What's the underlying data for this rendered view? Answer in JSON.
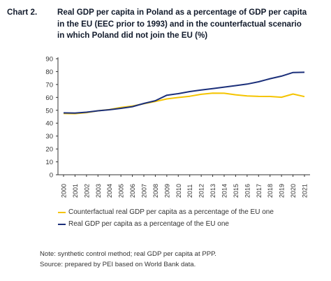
{
  "chart_data": {
    "type": "line",
    "label": "Chart 2.",
    "title": "Real GDP per capita in Poland as a percentage of GDP per capita in the EU (EEC prior to 1993) and in the counterfactual scenario in which Poland did not join the EU (%)",
    "title_lines": [
      "Real GDP per capita in Poland as a percentage of GDP per capita",
      "in the EU (EEC prior to 1993) and in the counterfactual scenario",
      "in which Poland did not join the EU (%)"
    ],
    "categories": [
      "2000",
      "2001",
      "2002",
      "2003",
      "2004",
      "2005",
      "2006",
      "2007",
      "2008",
      "2009",
      "2010",
      "2011",
      "2012",
      "2013",
      "2014",
      "2015",
      "2016",
      "2017",
      "2018",
      "2019",
      "2020",
      "2021"
    ],
    "series": [
      {
        "name": "Counterfactual real GDP per capita as a percentage of the EU one",
        "color": "#f5c400",
        "values": [
          47.5,
          47.4,
          48.2,
          49.6,
          50.6,
          52.2,
          53.3,
          55.1,
          56.8,
          58.8,
          59.9,
          60.9,
          62.4,
          63.3,
          63.2,
          62.0,
          61.1,
          60.8,
          60.7,
          60.1,
          62.6,
          60.6
        ]
      },
      {
        "name": "Real GDP per capita as a percentage of the EU one",
        "color": "#1b2f7a",
        "values": [
          48.0,
          47.8,
          48.5,
          49.6,
          50.4,
          51.5,
          52.8,
          55.3,
          57.4,
          61.7,
          62.9,
          64.5,
          65.7,
          66.8,
          68.0,
          69.1,
          70.3,
          72.1,
          74.5,
          76.5,
          79.3,
          79.5
        ]
      }
    ],
    "y_ticks": [
      "0",
      "10",
      "20",
      "30",
      "40",
      "50",
      "60",
      "70",
      "80",
      "90"
    ],
    "ylim": [
      0,
      90
    ],
    "xlabel": "",
    "ylabel": "",
    "grid": false,
    "legend_position": "bottom"
  },
  "notes": [
    "Note: synthetic control method; real GDP per capita at PPP.",
    "Source: prepared by PEI based on World Bank data."
  ]
}
